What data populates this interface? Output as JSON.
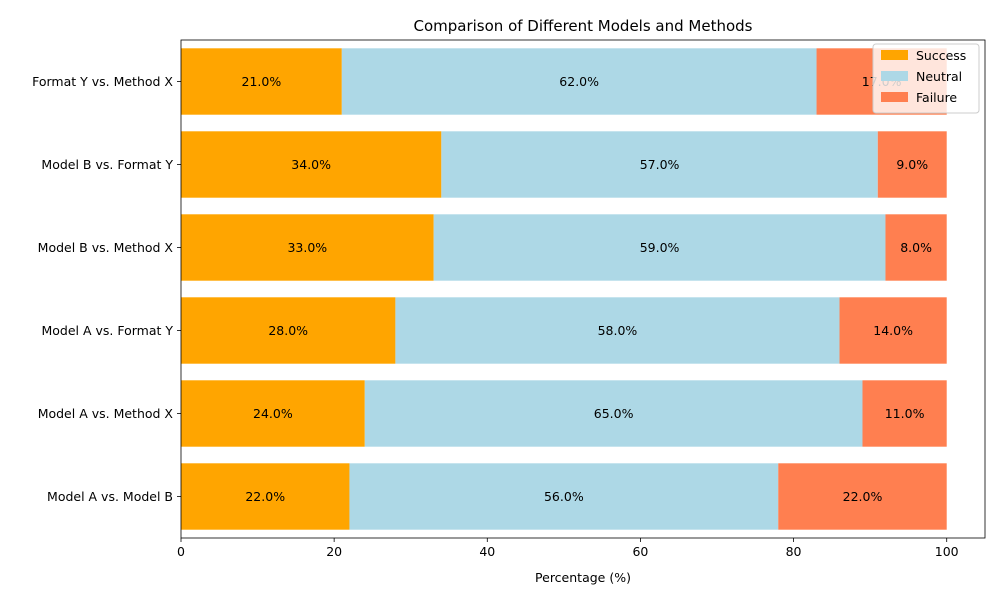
{
  "chart_data": {
    "type": "bar",
    "orientation": "horizontal",
    "stacked": true,
    "title": "Comparison of Different Models and Methods",
    "xlabel": "Percentage (%)",
    "ylabel": "",
    "xlim": [
      0,
      105
    ],
    "xticks": [
      0,
      20,
      40,
      60,
      80,
      100
    ],
    "categories": [
      "Model A vs. Model B",
      "Model A vs. Method X",
      "Model A vs. Format Y",
      "Model B vs. Method X",
      "Model B vs. Format Y",
      "Format Y vs. Method X"
    ],
    "series": [
      {
        "name": "Success",
        "color": "#FFA500",
        "values": [
          22,
          24,
          28,
          33,
          34,
          21
        ]
      },
      {
        "name": "Neutral",
        "color": "#ADD8E6",
        "values": [
          56,
          65,
          58,
          59,
          57,
          62
        ]
      },
      {
        "name": "Failure",
        "color": "#FF7F50",
        "values": [
          22,
          11,
          14,
          8,
          9,
          17
        ]
      }
    ],
    "label_suffix": "%",
    "legend_position": "top-right",
    "grid": false
  }
}
